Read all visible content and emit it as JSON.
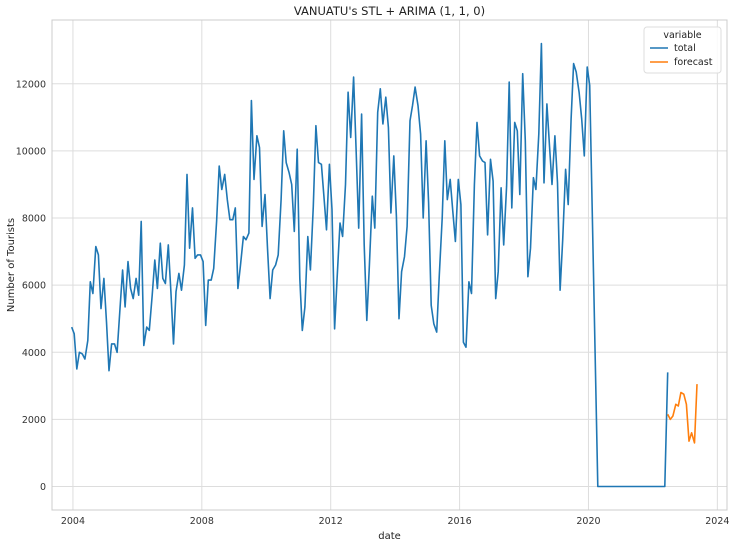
{
  "chart_data": {
    "type": "line",
    "title": "VANUATU's STL + ARIMA (1, 1, 0)",
    "xlabel": "date",
    "ylabel": "Number of Tourists",
    "xlim": [
      2003.35,
      2024.3
    ],
    "ylim": [
      -700,
      13900
    ],
    "x_ticks": [
      2004,
      2008,
      2012,
      2016,
      2020,
      2024
    ],
    "y_ticks": [
      0,
      2000,
      4000,
      6000,
      8000,
      10000,
      12000
    ],
    "grid": true,
    "legend": {
      "title": "variable",
      "position": "top-right",
      "entries": [
        "total",
        "forecast"
      ]
    },
    "series": [
      {
        "name": "total",
        "color": "#1f77b4",
        "points": [
          [
            2003.96,
            4750
          ],
          [
            2004.04,
            4550
          ],
          [
            2004.12,
            3500
          ],
          [
            2004.2,
            4000
          ],
          [
            2004.29,
            3950
          ],
          [
            2004.37,
            3800
          ],
          [
            2004.46,
            4350
          ],
          [
            2004.54,
            6100
          ],
          [
            2004.62,
            5750
          ],
          [
            2004.71,
            7150
          ],
          [
            2004.79,
            6900
          ],
          [
            2004.87,
            5300
          ],
          [
            2004.96,
            6200
          ],
          [
            2005.04,
            4900
          ],
          [
            2005.12,
            3450
          ],
          [
            2005.2,
            4250
          ],
          [
            2005.29,
            4250
          ],
          [
            2005.37,
            4000
          ],
          [
            2005.46,
            5300
          ],
          [
            2005.54,
            6450
          ],
          [
            2005.62,
            5350
          ],
          [
            2005.71,
            6700
          ],
          [
            2005.79,
            5900
          ],
          [
            2005.87,
            5600
          ],
          [
            2005.96,
            6200
          ],
          [
            2006.04,
            5700
          ],
          [
            2006.12,
            7900
          ],
          [
            2006.2,
            4200
          ],
          [
            2006.29,
            4750
          ],
          [
            2006.37,
            4650
          ],
          [
            2006.46,
            5700
          ],
          [
            2006.54,
            6750
          ],
          [
            2006.62,
            5900
          ],
          [
            2006.71,
            7250
          ],
          [
            2006.79,
            6200
          ],
          [
            2006.87,
            6050
          ],
          [
            2006.96,
            7200
          ],
          [
            2007.04,
            5800
          ],
          [
            2007.12,
            4250
          ],
          [
            2007.2,
            5800
          ],
          [
            2007.29,
            6350
          ],
          [
            2007.37,
            5850
          ],
          [
            2007.46,
            6600
          ],
          [
            2007.54,
            9300
          ],
          [
            2007.62,
            7100
          ],
          [
            2007.71,
            8300
          ],
          [
            2007.79,
            6800
          ],
          [
            2007.87,
            6900
          ],
          [
            2007.96,
            6900
          ],
          [
            2008.04,
            6700
          ],
          [
            2008.12,
            4800
          ],
          [
            2008.2,
            6150
          ],
          [
            2008.29,
            6150
          ],
          [
            2008.37,
            6500
          ],
          [
            2008.46,
            7900
          ],
          [
            2008.54,
            9550
          ],
          [
            2008.62,
            8850
          ],
          [
            2008.71,
            9300
          ],
          [
            2008.79,
            8550
          ],
          [
            2008.87,
            7950
          ],
          [
            2008.96,
            7950
          ],
          [
            2009.04,
            8300
          ],
          [
            2009.12,
            5900
          ],
          [
            2009.2,
            6600
          ],
          [
            2009.29,
            7450
          ],
          [
            2009.37,
            7350
          ],
          [
            2009.46,
            7550
          ],
          [
            2009.54,
            11500
          ],
          [
            2009.62,
            9150
          ],
          [
            2009.71,
            10450
          ],
          [
            2009.79,
            10100
          ],
          [
            2009.87,
            7750
          ],
          [
            2009.96,
            8700
          ],
          [
            2010.04,
            7100
          ],
          [
            2010.12,
            5600
          ],
          [
            2010.2,
            6450
          ],
          [
            2010.29,
            6600
          ],
          [
            2010.37,
            6900
          ],
          [
            2010.46,
            8550
          ],
          [
            2010.54,
            10600
          ],
          [
            2010.62,
            9650
          ],
          [
            2010.71,
            9350
          ],
          [
            2010.79,
            9000
          ],
          [
            2010.87,
            7600
          ],
          [
            2010.96,
            10050
          ],
          [
            2011.04,
            6200
          ],
          [
            2011.12,
            4650
          ],
          [
            2011.2,
            5350
          ],
          [
            2011.29,
            7450
          ],
          [
            2011.37,
            6450
          ],
          [
            2011.46,
            8350
          ],
          [
            2011.54,
            10750
          ],
          [
            2011.62,
            9650
          ],
          [
            2011.71,
            9600
          ],
          [
            2011.79,
            8650
          ],
          [
            2011.87,
            7650
          ],
          [
            2011.96,
            9600
          ],
          [
            2012.04,
            8250
          ],
          [
            2012.12,
            4700
          ],
          [
            2012.2,
            6200
          ],
          [
            2012.29,
            7850
          ],
          [
            2012.37,
            7450
          ],
          [
            2012.46,
            9000
          ],
          [
            2012.54,
            11750
          ],
          [
            2012.62,
            10400
          ],
          [
            2012.71,
            12200
          ],
          [
            2012.79,
            9950
          ],
          [
            2012.87,
            7700
          ],
          [
            2012.96,
            11100
          ],
          [
            2013.04,
            7200
          ],
          [
            2013.12,
            4950
          ],
          [
            2013.2,
            6600
          ],
          [
            2013.29,
            8650
          ],
          [
            2013.37,
            7700
          ],
          [
            2013.46,
            11150
          ],
          [
            2013.54,
            11850
          ],
          [
            2013.62,
            10800
          ],
          [
            2013.71,
            11600
          ],
          [
            2013.79,
            10700
          ],
          [
            2013.87,
            8150
          ],
          [
            2013.96,
            9850
          ],
          [
            2014.04,
            8050
          ],
          [
            2014.12,
            5000
          ],
          [
            2014.2,
            6400
          ],
          [
            2014.29,
            6850
          ],
          [
            2014.37,
            7750
          ],
          [
            2014.46,
            10900
          ],
          [
            2014.54,
            11350
          ],
          [
            2014.62,
            11900
          ],
          [
            2014.71,
            11350
          ],
          [
            2014.79,
            10500
          ],
          [
            2014.87,
            8000
          ],
          [
            2014.96,
            10300
          ],
          [
            2015.04,
            8450
          ],
          [
            2015.12,
            5400
          ],
          [
            2015.2,
            4850
          ],
          [
            2015.29,
            4600
          ],
          [
            2015.37,
            6300
          ],
          [
            2015.46,
            8000
          ],
          [
            2015.54,
            10300
          ],
          [
            2015.62,
            8550
          ],
          [
            2015.71,
            9150
          ],
          [
            2015.79,
            8200
          ],
          [
            2015.87,
            7300
          ],
          [
            2015.96,
            9150
          ],
          [
            2016.04,
            8400
          ],
          [
            2016.12,
            4300
          ],
          [
            2016.2,
            4150
          ],
          [
            2016.29,
            6100
          ],
          [
            2016.37,
            5750
          ],
          [
            2016.46,
            9000
          ],
          [
            2016.54,
            10850
          ],
          [
            2016.62,
            9850
          ],
          [
            2016.71,
            9700
          ],
          [
            2016.79,
            9650
          ],
          [
            2016.87,
            7500
          ],
          [
            2016.96,
            9750
          ],
          [
            2017.04,
            9100
          ],
          [
            2017.12,
            5600
          ],
          [
            2017.2,
            6400
          ],
          [
            2017.29,
            8900
          ],
          [
            2017.37,
            7200
          ],
          [
            2017.46,
            8950
          ],
          [
            2017.54,
            12050
          ],
          [
            2017.62,
            8300
          ],
          [
            2017.71,
            10850
          ],
          [
            2017.79,
            10600
          ],
          [
            2017.87,
            8700
          ],
          [
            2017.96,
            12300
          ],
          [
            2018.04,
            10300
          ],
          [
            2018.12,
            6250
          ],
          [
            2018.2,
            7100
          ],
          [
            2018.29,
            9200
          ],
          [
            2018.37,
            8850
          ],
          [
            2018.46,
            10500
          ],
          [
            2018.54,
            13200
          ],
          [
            2018.62,
            9050
          ],
          [
            2018.71,
            11400
          ],
          [
            2018.79,
            10150
          ],
          [
            2018.87,
            9000
          ],
          [
            2018.96,
            10450
          ],
          [
            2019.04,
            9050
          ],
          [
            2019.12,
            5850
          ],
          [
            2019.2,
            7350
          ],
          [
            2019.29,
            9450
          ],
          [
            2019.37,
            8400
          ],
          [
            2019.46,
            10950
          ],
          [
            2019.54,
            12600
          ],
          [
            2019.62,
            12350
          ],
          [
            2019.71,
            11750
          ],
          [
            2019.79,
            10950
          ],
          [
            2019.87,
            9850
          ],
          [
            2019.96,
            12500
          ],
          [
            2020.04,
            11950
          ],
          [
            2020.29,
            0
          ],
          [
            2022.37,
            0
          ],
          [
            2022.46,
            3400
          ]
        ]
      },
      {
        "name": "forecast",
        "color": "#ff7f0e",
        "points": [
          [
            2022.46,
            2150
          ],
          [
            2022.54,
            2000
          ],
          [
            2022.62,
            2100
          ],
          [
            2022.71,
            2450
          ],
          [
            2022.79,
            2400
          ],
          [
            2022.87,
            2800
          ],
          [
            2022.96,
            2750
          ],
          [
            2023.04,
            2450
          ],
          [
            2023.12,
            1350
          ],
          [
            2023.2,
            1600
          ],
          [
            2023.29,
            1300
          ],
          [
            2023.37,
            3050
          ]
        ]
      }
    ]
  }
}
